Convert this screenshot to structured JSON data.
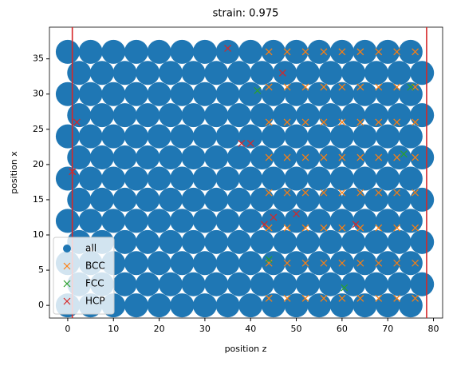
{
  "chart_data": {
    "type": "scatter",
    "title": "strain: 0.975",
    "x_label": "position z",
    "y_label": "position x",
    "xlim": [
      -4,
      82
    ],
    "ylim": [
      -1.8,
      39.5
    ],
    "xticks": [
      0,
      10,
      20,
      30,
      40,
      50,
      60,
      70,
      80
    ],
    "yticks": [
      0,
      5,
      10,
      15,
      20,
      25,
      30,
      35
    ],
    "legend": "lower left",
    "vlines": [
      1,
      78.5
    ],
    "vline_color": "#d62728",
    "series": [
      {
        "name": "all",
        "color": "#1f77b4",
        "marker": "o",
        "x": [
          0,
          5,
          10,
          15,
          20,
          25,
          30,
          35,
          40,
          45,
          50,
          55,
          60,
          65,
          70,
          75,
          2.5,
          7.5,
          12.5,
          17.5,
          22.5,
          27.5,
          32.5,
          37.5,
          42.5,
          47.5,
          52.5,
          57.5,
          62.5,
          67.5,
          72.5,
          77.5,
          0,
          5,
          10,
          15,
          20,
          25,
          30,
          35,
          40,
          45,
          50,
          55,
          60,
          65,
          70,
          75,
          2.5,
          7.5,
          12.5,
          17.5,
          22.5,
          27.5,
          32.5,
          37.5,
          42.5,
          47.5,
          52.5,
          57.5,
          62.5,
          67.5,
          72.5,
          77.5,
          0,
          5,
          10,
          15,
          20,
          25,
          30,
          35,
          40,
          45,
          50,
          55,
          60,
          65,
          70,
          75,
          2.5,
          7.5,
          12.5,
          17.5,
          22.5,
          27.5,
          32.5,
          37.5,
          42.5,
          47.5,
          52.5,
          57.5,
          62.5,
          67.5,
          72.5,
          77.5,
          0,
          5,
          10,
          15,
          20,
          25,
          30,
          35,
          40,
          45,
          50,
          55,
          60,
          65,
          70,
          75,
          2.5,
          7.5,
          12.5,
          17.5,
          22.5,
          27.5,
          32.5,
          37.5,
          42.5,
          47.5,
          52.5,
          57.5,
          62.5,
          67.5,
          72.5,
          77.5,
          0,
          5,
          10,
          15,
          20,
          25,
          30,
          35,
          40,
          45,
          50,
          55,
          60,
          65,
          70,
          75,
          2.5,
          7.5,
          12.5,
          17.5,
          22.5,
          27.5,
          32.5,
          37.5,
          42.5,
          47.5,
          52.5,
          57.5,
          62.5,
          67.5,
          72.5,
          77.5,
          0,
          5,
          10,
          15,
          20,
          25,
          30,
          35,
          40,
          45,
          50,
          55,
          60,
          65,
          70,
          75,
          2.5,
          7.5,
          12.5,
          17.5,
          22.5,
          27.5,
          32.5,
          37.5,
          42.5,
          47.5,
          52.5,
          57.5,
          62.5,
          67.5,
          72.5,
          77.5,
          0,
          5,
          10,
          15,
          20,
          25,
          30,
          35,
          40,
          45,
          50,
          55,
          60,
          65,
          70,
          75
        ],
        "y": [
          0,
          0,
          0,
          0,
          0,
          0,
          0,
          0,
          0,
          0,
          0,
          0,
          0,
          0,
          0,
          0,
          3,
          3,
          3,
          3,
          3,
          3,
          3,
          3,
          3,
          3,
          3,
          3,
          3,
          3,
          3,
          3,
          6,
          6,
          6,
          6,
          6,
          6,
          6,
          6,
          6,
          6,
          6,
          6,
          6,
          6,
          6,
          6,
          9,
          9,
          9,
          9,
          9,
          9,
          9,
          9,
          9,
          9,
          9,
          9,
          9,
          9,
          9,
          9,
          12,
          12,
          12,
          12,
          12,
          12,
          12,
          12,
          12,
          12,
          12,
          12,
          12,
          12,
          12,
          12,
          15,
          15,
          15,
          15,
          15,
          15,
          15,
          15,
          15,
          15,
          15,
          15,
          15,
          15,
          15,
          15,
          18,
          18,
          18,
          18,
          18,
          18,
          18,
          18,
          18,
          18,
          18,
          18,
          18,
          18,
          18,
          18,
          21,
          21,
          21,
          21,
          21,
          21,
          21,
          21,
          21,
          21,
          21,
          21,
          21,
          21,
          21,
          21,
          24,
          24,
          24,
          24,
          24,
          24,
          24,
          24,
          24,
          24,
          24,
          24,
          24,
          24,
          24,
          24,
          27,
          27,
          27,
          27,
          27,
          27,
          27,
          27,
          27,
          27,
          27,
          27,
          27,
          27,
          27,
          27,
          30,
          30,
          30,
          30,
          30,
          30,
          30,
          30,
          30,
          30,
          30,
          30,
          30,
          30,
          30,
          30,
          33,
          33,
          33,
          33,
          33,
          33,
          33,
          33,
          33,
          33,
          33,
          33,
          33,
          33,
          33,
          33,
          36,
          36,
          36,
          36,
          36,
          36,
          36,
          36,
          36,
          36,
          36,
          36,
          36,
          36,
          36,
          36
        ]
      },
      {
        "name": "BCC",
        "color": "#ff7f0e",
        "marker": "x",
        "x": [
          44,
          48,
          52,
          56,
          60,
          64,
          68,
          72,
          76,
          44,
          48,
          52,
          56,
          60,
          64,
          68,
          72,
          76,
          44,
          48,
          52,
          56,
          60,
          64,
          68,
          72,
          76,
          44,
          48,
          52,
          56,
          60,
          64,
          68,
          72,
          76,
          44,
          48,
          52,
          56,
          60,
          64,
          68,
          72,
          76,
          44,
          48,
          52,
          56,
          60,
          64,
          68,
          72,
          76,
          44,
          48,
          52,
          56,
          60,
          64,
          68,
          72,
          76,
          44,
          48,
          52,
          56,
          60,
          64,
          68,
          72,
          76
        ],
        "y": [
          1,
          1,
          1,
          1,
          1,
          1,
          1,
          1,
          1,
          6,
          6,
          6,
          6,
          6,
          6,
          6,
          6,
          6,
          11,
          11,
          11,
          11,
          11,
          11,
          11,
          11,
          11,
          16,
          16,
          16,
          16,
          16,
          16,
          16,
          16,
          16,
          21,
          21,
          21,
          21,
          21,
          21,
          21,
          21,
          21,
          26,
          26,
          26,
          26,
          26,
          26,
          26,
          26,
          26,
          31,
          31,
          31,
          31,
          31,
          31,
          31,
          31,
          31,
          36,
          36,
          36,
          36,
          36,
          36,
          36,
          36,
          36
        ]
      },
      {
        "name": "FCC",
        "color": "#2ca02c",
        "marker": "x",
        "x": [
          41.5,
          44,
          60.5,
          73.5,
          75
        ],
        "y": [
          30.5,
          6.5,
          2.5,
          21.5,
          31
        ]
      },
      {
        "name": "HCP",
        "color": "#d62728",
        "marker": "x",
        "x": [
          35,
          2,
          1,
          47,
          45,
          50,
          63,
          43,
          38,
          40
        ],
        "y": [
          36.5,
          26,
          19,
          33,
          12.5,
          13,
          11.5,
          11.5,
          23,
          23
        ]
      }
    ]
  }
}
